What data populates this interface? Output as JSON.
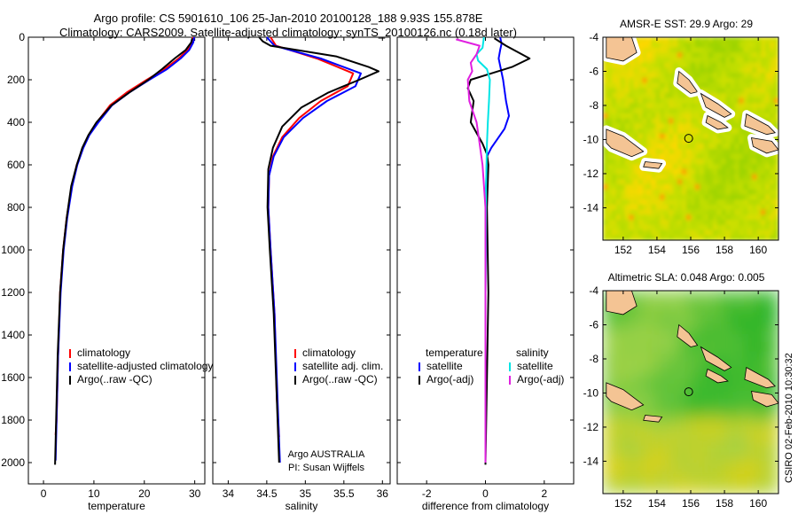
{
  "header": {
    "title_line1": "Argo profile: CS 5901610_106 25-Jan-2010 20100128_188 9.93S 155.878E",
    "title_line2": "Climatology: CARS2009. Satellite-adjusted climatology: synTS_20100126.nc (0.18d later)"
  },
  "colors": {
    "climatology": "#ff0000",
    "satellite": "#0000ff",
    "argo": "#000000",
    "salinity_satellite": "#00e5e5",
    "salinity_argo": "#e020e0"
  },
  "chart_data": [
    {
      "type": "line",
      "xlabel": "temperature",
      "ylabel": "",
      "xlim": [
        -3,
        32
      ],
      "ylim": [
        2100,
        0
      ],
      "xticks": [
        0,
        10,
        20,
        30
      ],
      "yticks": [
        0,
        200,
        400,
        600,
        800,
        1000,
        1200,
        1400,
        1600,
        1800,
        2000
      ],
      "legend": [
        "climatology",
        "satellite-adjusted climatology",
        "Argo(..raw -QC)"
      ],
      "series": [
        {
          "name": "climatology",
          "color": "#ff0000",
          "x": [
            29.6,
            29.4,
            28.6,
            26.8,
            24.0,
            20.5,
            16.5,
            13.2,
            10.6,
            9.0,
            7.8,
            6.6,
            5.6,
            4.6,
            3.9,
            3.3,
            2.9,
            2.6,
            2.4
          ],
          "y": [
            0,
            25,
            60,
            100,
            150,
            200,
            260,
            320,
            400,
            460,
            520,
            600,
            700,
            850,
            1000,
            1200,
            1500,
            1800,
            1870
          ]
        },
        {
          "name": "satellite-adjusted climatology",
          "color": "#0000ff",
          "x": [
            29.9,
            29.7,
            28.9,
            27.2,
            24.5,
            21.0,
            17.0,
            13.6,
            10.9,
            9.1,
            7.9,
            6.7,
            5.7,
            4.7,
            4.0,
            3.4,
            2.9,
            2.6,
            2.4
          ],
          "y": [
            0,
            25,
            60,
            100,
            150,
            200,
            260,
            320,
            400,
            460,
            520,
            600,
            700,
            850,
            1000,
            1200,
            1500,
            1800,
            1990
          ]
        },
        {
          "name": "Argo(..raw -QC)",
          "color": "#000000",
          "x": [
            29.5,
            29.3,
            28.2,
            26.0,
            23.5,
            20.8,
            17.0,
            13.5,
            10.5,
            8.9,
            7.7,
            6.6,
            5.5,
            4.6,
            3.9,
            3.3,
            2.8,
            2.5,
            2.3
          ],
          "y": [
            5,
            25,
            60,
            100,
            150,
            200,
            260,
            320,
            400,
            460,
            520,
            600,
            700,
            850,
            1000,
            1200,
            1500,
            1800,
            2010
          ]
        }
      ]
    },
    {
      "type": "line",
      "xlabel": "salinity",
      "ylabel": "",
      "xlim": [
        33.8,
        36.1
      ],
      "ylim": [
        2100,
        0
      ],
      "xticks": [
        34,
        34.5,
        35,
        35.5,
        36
      ],
      "legend": [
        "climatology",
        "satellite adj. clim.",
        "Argo(..raw -QC)"
      ],
      "annotation": [
        "Argo AUSTRALIA",
        "PI: Susan Wijffels"
      ],
      "series": [
        {
          "name": "climatology",
          "color": "#ff0000",
          "x": [
            34.55,
            34.62,
            35.15,
            35.62,
            35.55,
            35.2,
            34.92,
            34.7,
            34.58,
            34.53,
            34.52,
            34.55,
            34.6,
            34.63,
            34.66
          ],
          "y": [
            0,
            40,
            100,
            170,
            230,
            300,
            380,
            470,
            560,
            650,
            800,
            1000,
            1300,
            1700,
            1880
          ]
        },
        {
          "name": "satellite adj. clim.",
          "color": "#0000ff",
          "x": [
            34.5,
            34.6,
            35.2,
            35.72,
            35.65,
            35.28,
            34.97,
            34.72,
            34.59,
            34.53,
            34.52,
            34.55,
            34.6,
            34.64,
            34.67
          ],
          "y": [
            0,
            40,
            100,
            170,
            230,
            300,
            380,
            470,
            560,
            650,
            800,
            1000,
            1300,
            1700,
            2000
          ]
        },
        {
          "name": "Argo(..raw -QC)",
          "color": "#000000",
          "x": [
            34.4,
            34.45,
            34.55,
            35.4,
            35.82,
            35.95,
            35.7,
            35.3,
            34.95,
            34.7,
            34.58,
            34.52,
            34.51,
            34.54,
            34.59,
            34.63,
            34.66
          ],
          "y": [
            0,
            20,
            40,
            90,
            140,
            160,
            200,
            260,
            330,
            420,
            520,
            620,
            800,
            1000,
            1300,
            1700,
            2000
          ]
        }
      ]
    },
    {
      "type": "line",
      "xlabel": "difference from climatology",
      "ylabel": "",
      "xlim": [
        -3,
        3
      ],
      "ylim": [
        2100,
        0
      ],
      "xticks": [
        -2,
        0,
        2
      ],
      "legend": [
        "temperature",
        "satellite",
        "Argo(-adj)",
        "salinity",
        "satellite",
        "Argo(-adj)"
      ],
      "series": [
        {
          "name": "temperature satellite",
          "color": "#0000ff",
          "x": [
            0.5,
            0.55,
            0.5,
            0.45,
            0.6,
            0.7,
            0.8,
            0.65,
            0.4,
            0.2,
            0.05,
            0.02,
            0.0,
            0.0
          ],
          "y": [
            0,
            30,
            60,
            100,
            200,
            300,
            370,
            430,
            480,
            520,
            560,
            700,
            1200,
            2000
          ]
        },
        {
          "name": "temperature Argo(-adj)",
          "color": "#000000",
          "x": [
            0.3,
            0.7,
            1.5,
            0.9,
            0.2,
            -0.5,
            -0.6,
            -0.4,
            -0.5,
            -0.3,
            -0.1,
            0.05,
            0.1,
            0.05,
            0.1,
            0.05,
            0.0
          ],
          "y": [
            5,
            40,
            100,
            140,
            170,
            200,
            240,
            300,
            400,
            450,
            500,
            550,
            600,
            800,
            1200,
            1600,
            2010
          ]
        },
        {
          "name": "salinity satellite",
          "color": "#00e5e5",
          "x": [
            -0.05,
            -0.1,
            -0.3,
            -0.25,
            0.05,
            0.15,
            0.12,
            0.08,
            0.05,
            0.02,
            0.0,
            0.0
          ],
          "y": [
            0,
            50,
            80,
            110,
            150,
            200,
            300,
            400,
            500,
            700,
            1200,
            2000
          ]
        },
        {
          "name": "salinity Argo(-adj)",
          "color": "#e020e0",
          "x": [
            -1.0,
            -0.2,
            -0.3,
            -0.5,
            -0.45,
            -0.6,
            -0.55,
            -0.3,
            -0.2,
            -0.1,
            0.0,
            0.0
          ],
          "y": [
            10,
            40,
            80,
            120,
            160,
            200,
            300,
            400,
            500,
            600,
            800,
            2000
          ]
        }
      ]
    },
    {
      "type": "heatmap",
      "title": "AMSR-E SST: 29.9 Argo: 29",
      "xticks": [
        152,
        154,
        156,
        158,
        160
      ],
      "yticks": [
        -4,
        -6,
        -8,
        -10,
        -12,
        -14
      ],
      "xlim": [
        150.8,
        161.2
      ],
      "ylim": [
        -15.9,
        -4
      ],
      "marker": {
        "lon": 155.878,
        "lat": -9.93
      }
    },
    {
      "type": "heatmap",
      "title": "Altimetric SLA: 0.048 Argo: 0.005",
      "xticks": [
        152,
        154,
        156,
        158,
        160
      ],
      "yticks": [
        -4,
        -6,
        -8,
        -10,
        -12,
        -14
      ],
      "xlim": [
        150.8,
        161.2
      ],
      "ylim": [
        -15.9,
        -4
      ],
      "marker": {
        "lon": 155.878,
        "lat": -9.93
      }
    }
  ],
  "stamp": "CSIRO 02-Feb-2010 10:30:32"
}
